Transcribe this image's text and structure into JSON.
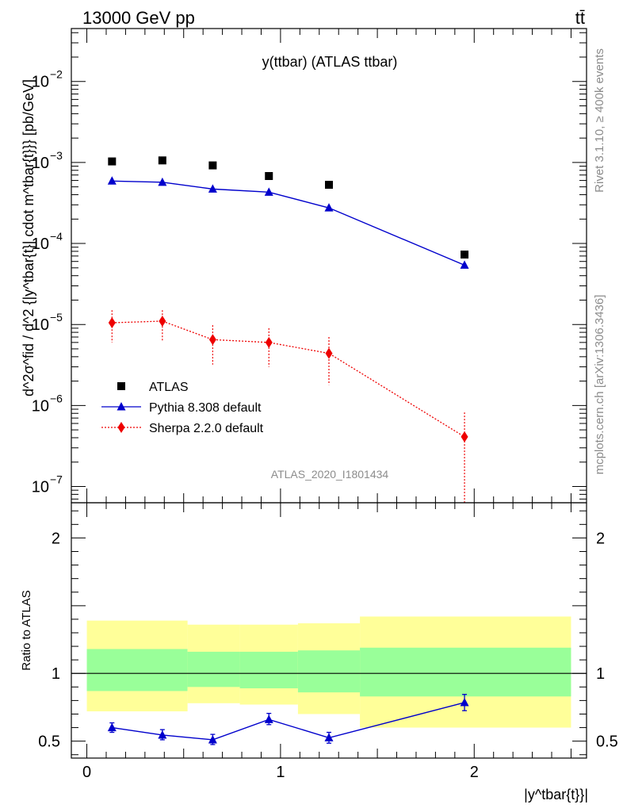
{
  "header": {
    "energy_label": "13000 GeV pp",
    "process_label": "tt̄"
  },
  "side_labels": {
    "rivet": "Rivet 3.1.10, ≥ 400k events",
    "mcplots": "mcplots.cern.ch [arXiv:1306.3436]"
  },
  "colors": {
    "atlas": "#000000",
    "pythia": "#0000cc",
    "sherpa": "#ee0000",
    "band_inner": "#99ff99",
    "band_outer": "#ffff99"
  },
  "chart_data": [
    {
      "type": "scatter",
      "title": "y(ttbar) (ATLAS ttbar)",
      "analysis_label": "ATLAS_2020_I1801434",
      "ylabel": "d^2σ^fid / d^2 {|y^tbar{t}| cdot m^tbar{t}}} [pb/GeV]",
      "yscale": "log",
      "xlim": [
        -0.08,
        2.58
      ],
      "ylim": [
        6.3e-08,
        0.045
      ],
      "y_ticks": [
        {
          "value": 1e-07,
          "base": "10",
          "exp": "−7"
        },
        {
          "value": 1e-06,
          "base": "10",
          "exp": "−6"
        },
        {
          "value": 1e-05,
          "base": "10",
          "exp": "−5"
        },
        {
          "value": 0.0001,
          "base": "10",
          "exp": "−4"
        },
        {
          "value": 0.001,
          "base": "10",
          "exp": "−3"
        },
        {
          "value": 0.01,
          "base": "10",
          "exp": "−2"
        }
      ],
      "legend_position": "bottom-left",
      "series": [
        {
          "name": "ATLAS",
          "marker": "square",
          "x": [
            0.13,
            0.39,
            0.65,
            0.94,
            1.25,
            1.95
          ],
          "y": [
            0.00103,
            0.00106,
            0.00092,
            0.00068,
            0.00053,
            7.3e-05
          ]
        },
        {
          "name": "Pythia 8.308 default",
          "marker": "triangle",
          "line": "solid",
          "x": [
            0.13,
            0.39,
            0.65,
            0.94,
            1.25,
            1.95
          ],
          "y": [
            0.00059,
            0.00057,
            0.00047,
            0.00043,
            0.000275,
            5.4e-05
          ]
        },
        {
          "name": "Sherpa 2.2.0 default",
          "marker": "diamond",
          "line": "dotted",
          "x": [
            0.13,
            0.39,
            0.65,
            0.94,
            1.25,
            1.95
          ],
          "y": [
            1.05e-05,
            1.1e-05,
            6.5e-06,
            6e-06,
            4.4e-06,
            4.1e-07
          ],
          "yerr_low": [
            6e-06,
            6.3e-06,
            3.2e-06,
            3e-06,
            1.8e-06,
            6.3e-08
          ],
          "yerr_high": [
            1.5e-05,
            1.5e-05,
            9.8e-06,
            9e-06,
            7e-06,
            8.2e-07
          ]
        }
      ]
    },
    {
      "type": "scatter",
      "ylabel": "Ratio to ATLAS",
      "xlabel": "|y^tbar{t}}|",
      "xlim": [
        -0.08,
        2.58
      ],
      "ylim": [
        0.375,
        2.26
      ],
      "x_ticks": [
        0,
        1,
        2
      ],
      "y_ticks": [
        0.5,
        1,
        2
      ],
      "reference_line": 1,
      "bands": [
        {
          "x0": 0.0,
          "x1": 0.52,
          "inner": [
            0.87,
            1.18
          ],
          "outer": [
            0.72,
            1.39
          ]
        },
        {
          "x0": 0.52,
          "x1": 0.79,
          "inner": [
            0.9,
            1.16
          ],
          "outer": [
            0.78,
            1.36
          ]
        },
        {
          "x0": 0.79,
          "x1": 1.09,
          "inner": [
            0.89,
            1.16
          ],
          "outer": [
            0.77,
            1.36
          ]
        },
        {
          "x0": 1.09,
          "x1": 1.41,
          "inner": [
            0.86,
            1.17
          ],
          "outer": [
            0.7,
            1.37
          ]
        },
        {
          "x0": 1.41,
          "x1": 2.5,
          "inner": [
            0.83,
            1.19
          ],
          "outer": [
            0.6,
            1.42
          ]
        }
      ],
      "series": [
        {
          "name": "Pythia 8.308 default",
          "marker": "triangle",
          "line": "solid",
          "x": [
            0.13,
            0.39,
            0.65,
            0.94,
            1.25,
            1.95
          ],
          "y": [
            0.6,
            0.545,
            0.51,
            0.66,
            0.525,
            0.785
          ],
          "yerr_low": [
            0.565,
            0.51,
            0.475,
            0.622,
            0.485,
            0.725
          ],
          "yerr_high": [
            0.635,
            0.585,
            0.55,
            0.705,
            0.565,
            0.845
          ]
        }
      ]
    }
  ]
}
